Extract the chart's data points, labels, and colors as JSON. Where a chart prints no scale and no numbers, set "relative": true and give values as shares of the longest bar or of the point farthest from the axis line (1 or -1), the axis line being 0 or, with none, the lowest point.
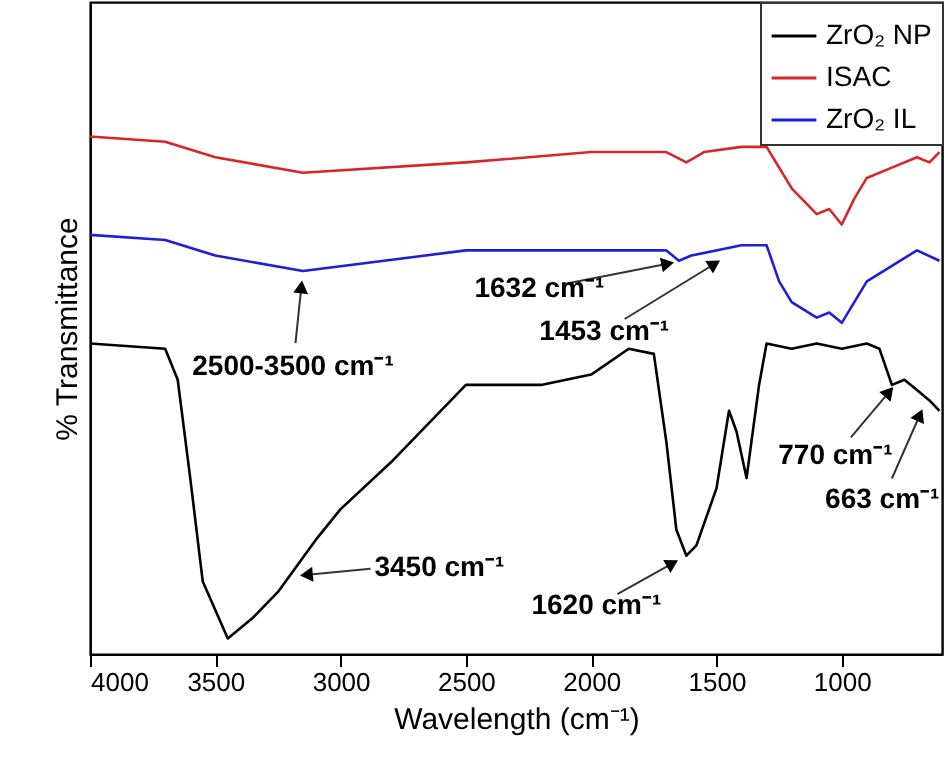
{
  "chart_data": {
    "type": "line",
    "relative": true,
    "xlabel": "Wavelength (cm⁻¹)",
    "ylabel": "% Transmittance",
    "xlim": [
      4000,
      600
    ],
    "xticks": [
      4000,
      3500,
      3000,
      2500,
      2000,
      1500,
      1000
    ],
    "legend": "top right",
    "grid": false,
    "marker": "none",
    "line_style": "solid",
    "series": [
      {
        "name": "ZrO₂ NP",
        "color": "#000000",
        "x": [
          4000,
          3700,
          3650,
          3600,
          3550,
          3450,
          3350,
          3250,
          3100,
          3000,
          2800,
          2500,
          2200,
          2000,
          1850,
          1750,
          1700,
          1660,
          1620,
          1580,
          1500,
          1450,
          1420,
          1380,
          1330,
          1300,
          1200,
          1100,
          1000,
          900,
          850,
          800,
          750,
          700,
          650,
          610
        ],
        "values": [
          0.6,
          0.59,
          0.53,
          0.34,
          0.14,
          0.03,
          0.07,
          0.12,
          0.22,
          0.28,
          0.37,
          0.52,
          0.52,
          0.54,
          0.59,
          0.58,
          0.41,
          0.24,
          0.19,
          0.21,
          0.32,
          0.47,
          0.43,
          0.34,
          0.52,
          0.6,
          0.59,
          0.6,
          0.59,
          0.6,
          0.59,
          0.52,
          0.53,
          0.51,
          0.49,
          0.47
        ]
      },
      {
        "name": "ISAC",
        "color": "#d62728",
        "x": [
          4000,
          3700,
          3500,
          3150,
          2500,
          2000,
          1700,
          1620,
          1550,
          1400,
          1300,
          1200,
          1100,
          1050,
          1000,
          950,
          900,
          800,
          700,
          650,
          610
        ],
        "values": [
          1.0,
          0.99,
          0.96,
          0.93,
          0.95,
          0.97,
          0.97,
          0.95,
          0.97,
          0.98,
          0.98,
          0.9,
          0.85,
          0.86,
          0.83,
          0.88,
          0.92,
          0.94,
          0.96,
          0.95,
          0.97
        ]
      },
      {
        "name": "ZrO₂ IL",
        "color": "#1f1fd6",
        "x": [
          4000,
          3700,
          3500,
          3150,
          2500,
          2000,
          1700,
          1650,
          1600,
          1400,
          1300,
          1250,
          1200,
          1100,
          1050,
          1000,
          950,
          900,
          800,
          700,
          610
        ],
        "values": [
          0.81,
          0.8,
          0.77,
          0.74,
          0.78,
          0.78,
          0.78,
          0.76,
          0.77,
          0.79,
          0.79,
          0.72,
          0.68,
          0.65,
          0.66,
          0.64,
          0.68,
          0.72,
          0.75,
          0.78,
          0.76
        ]
      }
    ],
    "annotations": [
      {
        "text": "2500-3500 cm⁻¹",
        "x": 3150,
        "y": 0.74
      },
      {
        "text": "1632 cm⁻¹",
        "x": 1632,
        "y": 0.76
      },
      {
        "text": "1453 cm⁻¹",
        "x": 1453,
        "y": 0.77
      },
      {
        "text": "3450 cm⁻¹",
        "x": 3200,
        "y": 0.15
      },
      {
        "text": "1620 cm⁻¹",
        "x": 1620,
        "y": 0.19
      },
      {
        "text": "770 cm⁻¹",
        "x": 770,
        "y": 0.53
      },
      {
        "text": "663 cm⁻¹",
        "x": 663,
        "y": 0.49
      }
    ]
  }
}
